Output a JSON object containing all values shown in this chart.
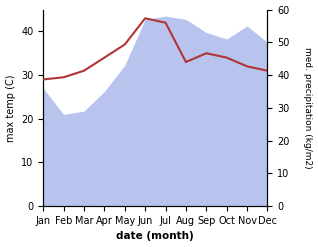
{
  "months": [
    "Jan",
    "Feb",
    "Mar",
    "Apr",
    "May",
    "Jun",
    "Jul",
    "Aug",
    "Sep",
    "Oct",
    "Nov",
    "Dec"
  ],
  "temp": [
    29,
    29.5,
    31,
    34,
    37,
    43,
    42,
    33,
    35,
    34,
    32,
    31
  ],
  "precip": [
    36,
    28,
    29,
    35,
    43,
    57,
    58,
    57,
    53,
    51,
    55,
    50
  ],
  "temp_color": "#b03535",
  "precip_color": "#b8c4ee",
  "ylim_left": [
    0,
    45
  ],
  "ylim_right": [
    0,
    60
  ],
  "yticks_left": [
    0,
    10,
    20,
    30,
    40
  ],
  "yticks_right": [
    0,
    10,
    20,
    30,
    40,
    50,
    60
  ],
  "xlabel": "date (month)",
  "ylabel_left": "max temp (C)",
  "ylabel_right": "med. precipitation (kg/m2)",
  "bg_color": "#ffffff",
  "plot_bg": "#ffffff"
}
